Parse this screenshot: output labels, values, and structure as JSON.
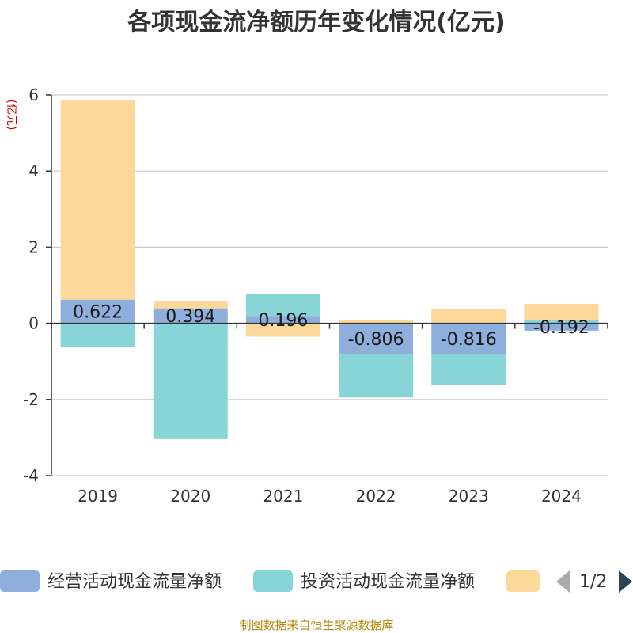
{
  "chart_data": {
    "type": "bar",
    "stacked": true,
    "title": "各项现金流净额历年变化情况(亿元)",
    "unit_label": "(亿元)",
    "categories": [
      "2019",
      "2020",
      "2021",
      "2022",
      "2023",
      "2024"
    ],
    "ylim": [
      -4,
      6
    ],
    "yticks": [
      6,
      4,
      2,
      0,
      -2,
      -4
    ],
    "grid": true,
    "series": [
      {
        "name": "经营活动现金流量净额",
        "color": "#8eaedb",
        "values": [
          0.622,
          0.394,
          0.196,
          -0.806,
          -0.816,
          -0.192
        ],
        "show_labels": true
      },
      {
        "name": "投资活动现金流量净额",
        "color": "#88d5d8",
        "values": [
          -0.62,
          -3.04,
          0.57,
          -1.14,
          -0.81,
          0.08
        ],
        "show_labels": false
      },
      {
        "name": "",
        "color": "#fdd89b",
        "values": [
          5.25,
          0.2,
          -0.35,
          0.08,
          0.38,
          0.43
        ],
        "show_labels": false
      }
    ],
    "legend": {
      "position": "bottom",
      "page": "1/2"
    }
  },
  "footer": {
    "source": "制图数据来自恒生聚源数据库"
  }
}
